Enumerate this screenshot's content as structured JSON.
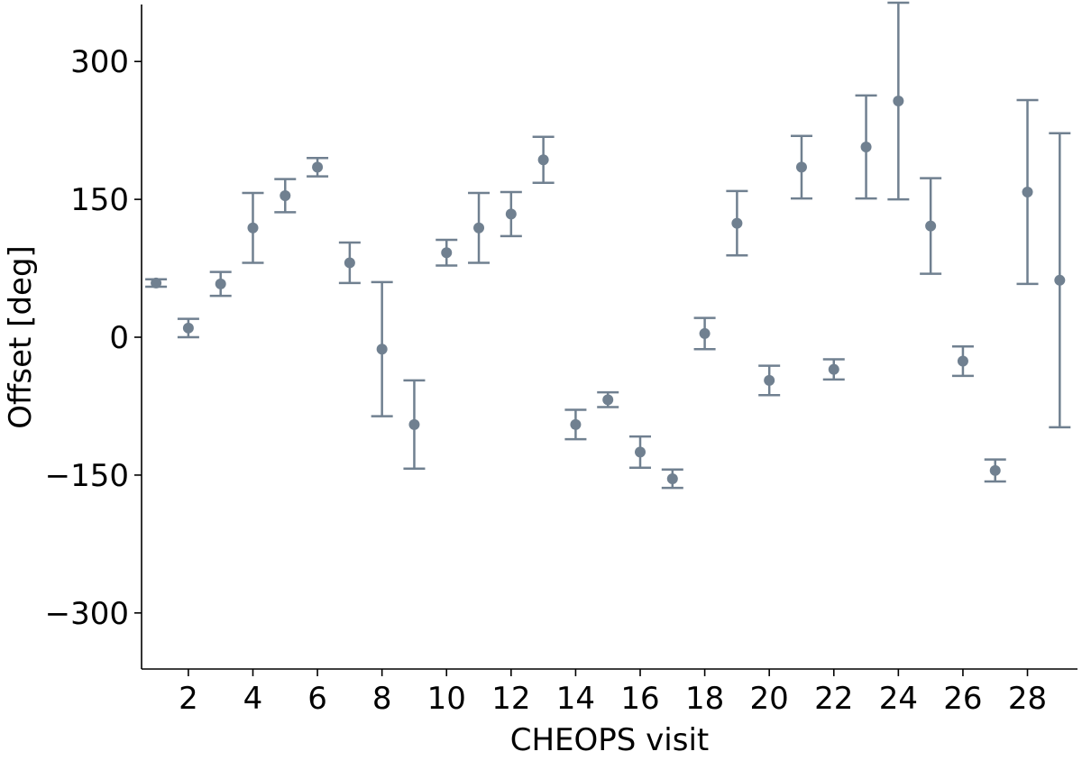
{
  "chart_data": {
    "type": "errorbar",
    "xlabel": "CHEOPS visit",
    "ylabel": "Offset [deg]",
    "color": "#708090",
    "x": [
      1,
      2,
      3,
      4,
      5,
      6,
      7,
      8,
      9,
      10,
      11,
      12,
      13,
      14,
      15,
      16,
      17,
      18,
      19,
      20,
      21,
      22,
      23,
      24,
      25,
      26,
      27,
      28,
      29
    ],
    "values": [
      59,
      10,
      58,
      119,
      154,
      185,
      81,
      -13,
      -95,
      92,
      119,
      134,
      193,
      -95,
      -68,
      -125,
      -154,
      4,
      124,
      -47,
      185,
      -35,
      207,
      257,
      121,
      -26,
      -145,
      158,
      62
    ],
    "errors": [
      4,
      10,
      13,
      38,
      18,
      10,
      22,
      73,
      48,
      14,
      38,
      24,
      25,
      16,
      8,
      17,
      10,
      17,
      35,
      16,
      34,
      11,
      56,
      107,
      52,
      16,
      12,
      100,
      160
    ],
    "xlim": [
      0.55,
      29.55
    ],
    "xticks": [
      2,
      4,
      6,
      8,
      10,
      12,
      14,
      16,
      18,
      20,
      22,
      24,
      26,
      28
    ],
    "ylim": [
      -361,
      362
    ],
    "yticks": [
      {
        "value": -300,
        "label": "−300"
      },
      {
        "value": -150,
        "label": "−150"
      },
      0,
      150,
      300
    ]
  }
}
